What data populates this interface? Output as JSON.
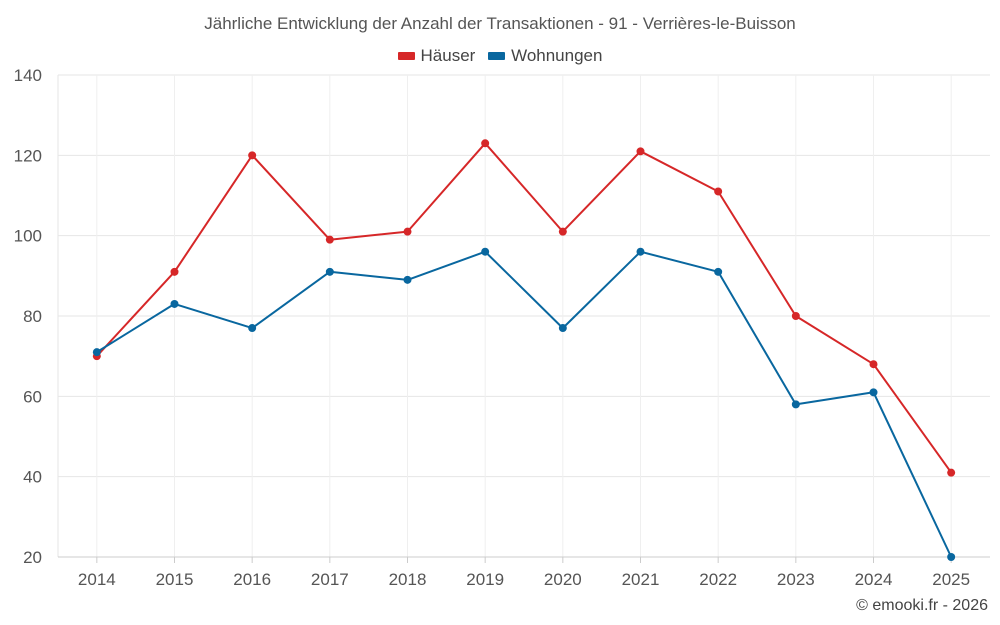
{
  "chart_data": {
    "type": "line",
    "title": "Jährliche Entwicklung der Anzahl der Transaktionen - 91 - Verrières-le-Buisson",
    "categories": [
      "2014",
      "2015",
      "2016",
      "2017",
      "2018",
      "2019",
      "2020",
      "2021",
      "2022",
      "2023",
      "2024",
      "2025"
    ],
    "series": [
      {
        "name": "Häuser",
        "color": "#d62728",
        "values": [
          70,
          91,
          120,
          99,
          101,
          123,
          101,
          121,
          111,
          80,
          68,
          41
        ]
      },
      {
        "name": "Wohnungen",
        "color": "#09679f",
        "values": [
          71,
          83,
          77,
          91,
          89,
          96,
          77,
          96,
          91,
          58,
          61,
          20
        ]
      }
    ],
    "ylim": [
      20,
      140
    ],
    "yticks": [
      20,
      40,
      60,
      80,
      100,
      120,
      140
    ],
    "xlabel": "",
    "ylabel": "",
    "grid": true,
    "legend": "top-center"
  },
  "credit": "© emooki.fr - 2026"
}
